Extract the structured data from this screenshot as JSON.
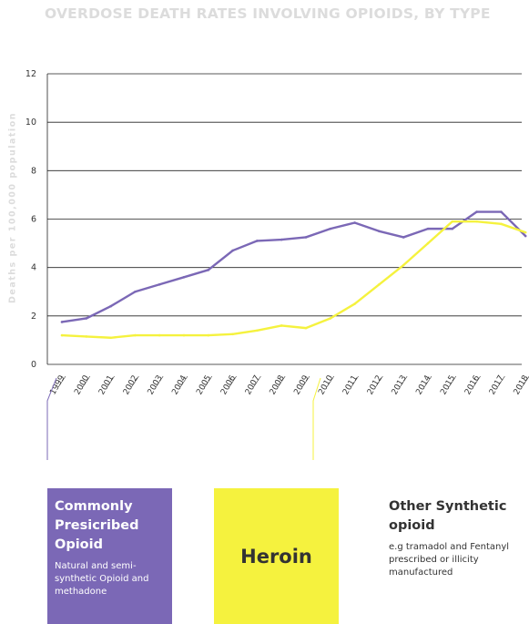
{
  "title": "OVERDOSE DEATH RATES INVOLVING OPIOIDS, BY TYPE",
  "ylabel": "Deaths per 100,000 population",
  "colors": {
    "series_a": "#7b68b6",
    "series_b": "#f5f23e",
    "grid": "#222222",
    "tick": "#333333"
  },
  "chart_data": {
    "type": "line",
    "title": "OVERDOSE DEATH RATES INVOLVING OPIOIDS, BY TYPE",
    "xlabel": "",
    "ylabel": "Deaths per 100,000 population",
    "ylim": [
      0,
      12
    ],
    "yticks": [
      0,
      2,
      4,
      6,
      8,
      10,
      12
    ],
    "x": [
      "1999",
      "2000",
      "2001",
      "2002",
      "2003",
      "2004",
      "2005",
      "2006",
      "2007",
      "2008",
      "2009",
      "2010",
      "2011",
      "2012",
      "2013",
      "2014",
      "2015",
      "2016",
      "2017",
      "2018"
    ],
    "grid": true,
    "series": [
      {
        "name": "Commonly Presicribed Opioid",
        "color": "#7b68b6",
        "values": [
          1.75,
          1.9,
          2.4,
          3.0,
          3.3,
          3.6,
          3.9,
          4.7,
          5.1,
          5.15,
          5.25,
          5.6,
          5.85,
          5.5,
          5.25,
          5.6,
          5.6,
          6.3,
          6.3,
          5.3
        ]
      },
      {
        "name": "Heroin",
        "color": "#f5f23e",
        "values": [
          1.2,
          1.15,
          1.1,
          1.2,
          1.2,
          1.2,
          1.2,
          1.25,
          1.4,
          1.6,
          1.5,
          1.9,
          2.5,
          3.3,
          4.1,
          5.0,
          5.9,
          5.9,
          5.8,
          5.45
        ]
      }
    ]
  },
  "legend": {
    "a": {
      "heading": "Commonly Presicribed Opioid",
      "desc": "Natural and semi-synthetic Opioid and methadone"
    },
    "b": {
      "heading": "Heroin"
    },
    "c": {
      "heading": "Other Synthetic opioid",
      "desc": "e.g tramadol and Fentanyl prescribed or illicity manufactured"
    }
  }
}
